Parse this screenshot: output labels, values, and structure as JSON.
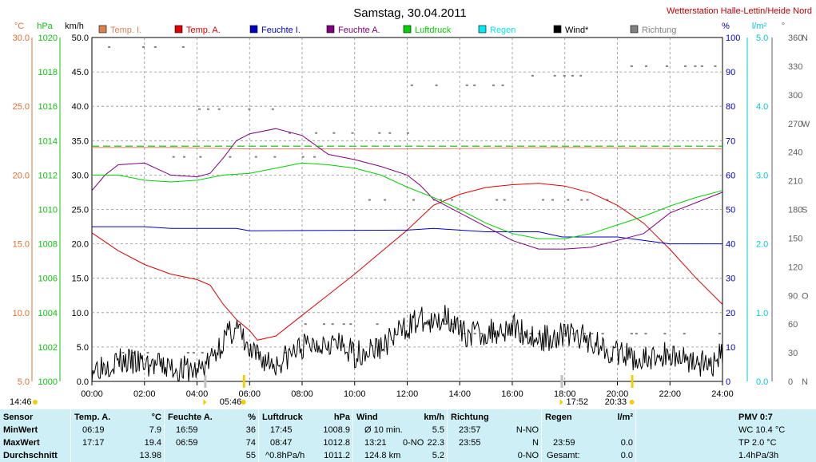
{
  "title": "Samstag, 30.04.2011",
  "station": "Wetterstation Halle-Lettin/Heide Nord",
  "axes": {
    "temp": {
      "unit": "°C",
      "color": "#e07030",
      "ticks": [
        "5.0",
        "10.0",
        "15.0",
        "20.0",
        "25.0",
        "30.0"
      ],
      "range": [
        5,
        30
      ]
    },
    "pressure": {
      "unit": "hPa",
      "color": "#10c010",
      "ticks": [
        "1000",
        "1002",
        "1004",
        "1006",
        "1008",
        "1010",
        "1012",
        "1014",
        "1016",
        "1018",
        "1020"
      ],
      "range": [
        1000,
        1020
      ]
    },
    "wind": {
      "unit": "km/h",
      "color": "#000000",
      "ticks": [
        "0.0",
        "5.0",
        "10.0",
        "15.0",
        "20.0",
        "25.0",
        "30.0",
        "35.0",
        "40.0",
        "45.0",
        "50.0"
      ],
      "range": [
        0,
        50
      ]
    },
    "humidity": {
      "unit": "%",
      "color": "#0000c0",
      "ticks": [
        "0",
        "10",
        "20",
        "30",
        "40",
        "50",
        "60",
        "70",
        "80",
        "90",
        "100"
      ],
      "range": [
        0,
        100
      ]
    },
    "rain": {
      "unit": "l/m²",
      "color": "#00c8d8",
      "ticks": [
        "0.0",
        "1.0",
        "2.0",
        "3.0",
        "4.0",
        "5.0"
      ],
      "range": [
        0,
        5
      ]
    },
    "direction": {
      "unit": "°",
      "color": "#606060",
      "ticks": [
        "0",
        "N",
        "30",
        "60",
        "90",
        "O",
        "120",
        "150",
        "180",
        "S",
        "210",
        "240",
        "270",
        "W",
        "300",
        "330",
        "360",
        "N"
      ]
    },
    "x_ticks": [
      "00:00",
      "02:00",
      "04:00",
      "06:00",
      "08:00",
      "10:00",
      "12:00",
      "14:00",
      "16:00",
      "18:00",
      "20:00",
      "22:00",
      "24:00"
    ]
  },
  "legend": [
    {
      "label": "Temp. I.",
      "color": "#e08050"
    },
    {
      "label": "Temp. A.",
      "color": "#e00000"
    },
    {
      "label": "Feuchte I.",
      "color": "#0000c0"
    },
    {
      "label": "Feuchte A.",
      "color": "#800080"
    },
    {
      "label": "Luftdruck",
      "color": "#00d000"
    },
    {
      "label": "Regen",
      "color": "#00e8f0"
    },
    {
      "label": "Wind*",
      "color": "#000000"
    },
    {
      "label": "Richtung",
      "color": "#808080"
    }
  ],
  "sun": {
    "rise_label": "05:46",
    "set_label": "20:33",
    "rise_hour": 5.77,
    "set_hour": 20.55,
    "left_time": "14:46"
  },
  "moon": {
    "hour1": 4.3,
    "hour2": 17.87,
    "label2": "17:52"
  },
  "chart_data": {
    "type": "line",
    "x_unit": "hour",
    "x_range": [
      0,
      24
    ],
    "series": [
      {
        "name": "Temp. I.",
        "axis": "temp",
        "color": "#e08050",
        "points": [
          [
            0,
            22.0
          ],
          [
            3,
            22.0
          ],
          [
            6,
            21.9
          ],
          [
            12,
            21.9
          ],
          [
            18,
            22.0
          ],
          [
            24,
            21.9
          ]
        ]
      },
      {
        "name": "Temp. A.",
        "axis": "temp",
        "color": "#e00000",
        "points": [
          [
            0,
            15.8
          ],
          [
            1,
            14.5
          ],
          [
            2,
            13.5
          ],
          [
            3,
            12.8
          ],
          [
            4,
            12.4
          ],
          [
            4.5,
            12.0
          ],
          [
            5,
            10.6
          ],
          [
            5.5,
            9.5
          ],
          [
            6,
            8.7
          ],
          [
            6.3,
            8.0
          ],
          [
            7,
            8.3
          ],
          [
            8,
            9.8
          ],
          [
            9,
            11.3
          ],
          [
            10,
            12.8
          ],
          [
            11,
            14.4
          ],
          [
            12,
            16.0
          ],
          [
            13,
            17.8
          ],
          [
            14,
            18.6
          ],
          [
            15,
            19.1
          ],
          [
            16,
            19.3
          ],
          [
            17,
            19.4
          ],
          [
            18,
            19.2
          ],
          [
            19,
            18.7
          ],
          [
            20,
            17.8
          ],
          [
            21,
            16.5
          ],
          [
            22,
            14.6
          ],
          [
            23,
            12.5
          ],
          [
            24,
            10.6
          ]
        ]
      },
      {
        "name": "Feuchte I.",
        "axis": "humidity",
        "color": "#0000c0",
        "points": [
          [
            0,
            45
          ],
          [
            2,
            45
          ],
          [
            3,
            44.5
          ],
          [
            5.5,
            44.5
          ],
          [
            6,
            43.8
          ],
          [
            12,
            44
          ],
          [
            13,
            44.5
          ],
          [
            15,
            43.5
          ],
          [
            16,
            43.5
          ],
          [
            17,
            43.5
          ],
          [
            17.9,
            42
          ],
          [
            20,
            42
          ],
          [
            22,
            40
          ],
          [
            24,
            40
          ]
        ]
      },
      {
        "name": "Feuchte A.",
        "axis": "humidity",
        "color": "#800080",
        "points": [
          [
            0,
            55.5
          ],
          [
            0.5,
            60
          ],
          [
            1,
            63
          ],
          [
            2,
            63.5
          ],
          [
            3,
            60
          ],
          [
            4,
            59.5
          ],
          [
            4.5,
            60.5
          ],
          [
            5,
            65
          ],
          [
            5.5,
            70
          ],
          [
            6,
            72
          ],
          [
            7,
            73.5
          ],
          [
            8,
            71.5
          ],
          [
            9,
            66
          ],
          [
            10,
            64.5
          ],
          [
            11,
            62.5
          ],
          [
            12,
            60
          ],
          [
            12.5,
            57
          ],
          [
            13,
            53
          ],
          [
            14,
            49
          ],
          [
            15,
            45
          ],
          [
            16,
            41
          ],
          [
            17,
            38.5
          ],
          [
            18,
            38.5
          ],
          [
            19,
            39
          ],
          [
            20,
            41
          ],
          [
            21,
            43
          ],
          [
            22,
            49
          ],
          [
            23,
            52
          ],
          [
            24,
            55
          ]
        ]
      },
      {
        "name": "Luftdruck",
        "axis": "pressure",
        "color": "#00d000",
        "points": [
          [
            0,
            1012.0
          ],
          [
            1,
            1012.0
          ],
          [
            2,
            1011.7
          ],
          [
            3,
            1011.6
          ],
          [
            4,
            1011.7
          ],
          [
            5,
            1012.0
          ],
          [
            6,
            1012.1
          ],
          [
            7,
            1012.4
          ],
          [
            8,
            1012.7
          ],
          [
            9,
            1012.6
          ],
          [
            10,
            1012.4
          ],
          [
            11,
            1012.0
          ],
          [
            12,
            1011.3
          ],
          [
            13,
            1010.7
          ],
          [
            14,
            1010.0
          ],
          [
            15,
            1009.2
          ],
          [
            16,
            1008.6
          ],
          [
            17,
            1008.3
          ],
          [
            18,
            1008.3
          ],
          [
            19,
            1008.6
          ],
          [
            20,
            1009.1
          ],
          [
            21,
            1009.6
          ],
          [
            22,
            1010.2
          ],
          [
            23,
            1010.7
          ],
          [
            24,
            1011.1
          ]
        ]
      },
      {
        "name": "Temp. I. (dashed)",
        "axis": "temp",
        "color": "#00c000",
        "dashed": true,
        "points": [
          [
            0,
            22.1
          ],
          [
            24,
            22.1
          ]
        ]
      },
      {
        "name": "Wind*",
        "axis": "wind",
        "color": "#000000",
        "points": [
          [
            0,
            2
          ],
          [
            1,
            3
          ],
          [
            2,
            2.5
          ],
          [
            3,
            2
          ],
          [
            4,
            1.5
          ],
          [
            4.5,
            3
          ],
          [
            5,
            6
          ],
          [
            5.5,
            8
          ],
          [
            6,
            4
          ],
          [
            7,
            2.5
          ],
          [
            8,
            5
          ],
          [
            9,
            6
          ],
          [
            10,
            4
          ],
          [
            11,
            5
          ],
          [
            12,
            8
          ],
          [
            12.5,
            9
          ],
          [
            13,
            8
          ],
          [
            13.5,
            10
          ],
          [
            14,
            7
          ],
          [
            15,
            7
          ],
          [
            16,
            8
          ],
          [
            17,
            6
          ],
          [
            18,
            7
          ],
          [
            19,
            6
          ],
          [
            20,
            4
          ],
          [
            21,
            3
          ],
          [
            22,
            4
          ],
          [
            23,
            3
          ],
          [
            23.5,
            2
          ],
          [
            24,
            4
          ]
        ]
      }
    ],
    "direction_marks": [
      {
        "hour_range": [
          0.5,
          4.0
        ],
        "deg": 350
      },
      {
        "hour_range": [
          4.0,
          7.0
        ],
        "deg": 285
      },
      {
        "hour_range": [
          7.0,
          12.0
        ],
        "deg": 260
      },
      {
        "hour_range": [
          12.0,
          16.0
        ],
        "deg": 310
      },
      {
        "hour_range": [
          16.0,
          20.0
        ],
        "deg": 320
      },
      {
        "hour_range": [
          20.0,
          24.0
        ],
        "deg": 330
      },
      {
        "hour_range": [
          0.3,
          8.0
        ],
        "deg": 30
      },
      {
        "hour_range": [
          8.0,
          14.0
        ],
        "deg": 60
      },
      {
        "hour_range": [
          14.0,
          24.0
        ],
        "deg": 50
      },
      {
        "hour_range": [
          3.0,
          10.0
        ],
        "deg": 235
      },
      {
        "hour_range": [
          10.0,
          20.0
        ],
        "deg": 190
      }
    ]
  },
  "stats": {
    "sensor": {
      "header": "Sensor",
      "rows": [
        "MinWert",
        "MaxWert",
        "Durchschnitt"
      ]
    },
    "temp_a": {
      "header": "Temp. A.",
      "unit": "°C",
      "rows": [
        [
          "06:19",
          "7.9"
        ],
        [
          "17:17",
          "19.4"
        ],
        [
          "",
          "13.98"
        ]
      ]
    },
    "feuchte_a": {
      "header": "Feuchte A.",
      "unit": "%",
      "rows": [
        [
          "16:59",
          "36"
        ],
        [
          "06:59",
          "74"
        ],
        [
          "",
          "55"
        ]
      ]
    },
    "luftdruck": {
      "header": "Luftdruck",
      "unit": "hPa",
      "rows": [
        [
          "17:45",
          "1008.9"
        ],
        [
          "08:47",
          "1012.8"
        ],
        [
          "^0.8hPa/h",
          "1011.2"
        ]
      ]
    },
    "wind": {
      "header": "Wind",
      "unit": "km/h",
      "rows": [
        [
          "Ø 10 min.",
          "",
          "5.5"
        ],
        [
          "13:21",
          "0-NO",
          "22.3"
        ],
        [
          "124.8 km",
          "",
          "5.2"
        ]
      ]
    },
    "richtung": {
      "header": "Richtung",
      "unit": "",
      "rows": [
        [
          "23:57",
          "N-NO"
        ],
        [
          "23:55",
          "N"
        ],
        [
          "",
          "0-NO"
        ]
      ]
    },
    "regen": {
      "header": "Regen",
      "unit": "l/m²",
      "rows": [
        [
          "",
          ""
        ],
        [
          "23:59",
          "0.0"
        ],
        [
          "Gesamt:",
          "0.0"
        ]
      ]
    },
    "pmv": {
      "header": "PMV 0:7",
      "rows": [
        "WC 10.4 °C",
        "TP 2.0 °C",
        "1.4hPa/3h"
      ]
    }
  }
}
